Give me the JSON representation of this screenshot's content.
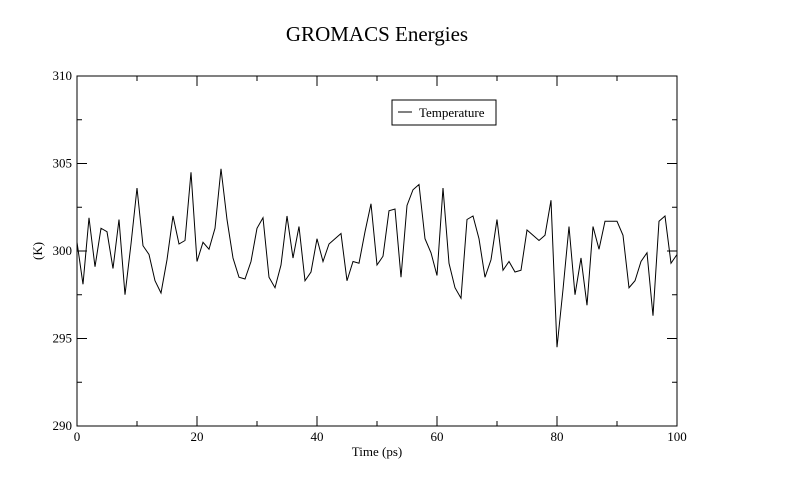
{
  "chart_data": {
    "type": "line",
    "title": "GROMACS Energies",
    "xlabel": "Time (ps)",
    "ylabel": "(K)",
    "xlim": [
      0,
      100
    ],
    "ylim": [
      290,
      310
    ],
    "xticks": [
      0,
      20,
      40,
      60,
      80,
      100
    ],
    "yticks": [
      290,
      295,
      300,
      305,
      310
    ],
    "grid": false,
    "legend_position": "top-right",
    "series": [
      {
        "name": "Temperature",
        "color": "#000000",
        "x": [
          0,
          1,
          2,
          3,
          4,
          5,
          6,
          7,
          8,
          9,
          10,
          11,
          12,
          13,
          14,
          15,
          16,
          17,
          18,
          19,
          20,
          21,
          22,
          23,
          24,
          25,
          26,
          27,
          28,
          29,
          30,
          31,
          32,
          33,
          34,
          35,
          36,
          37,
          38,
          39,
          40,
          41,
          42,
          43,
          44,
          45,
          46,
          47,
          48,
          49,
          50,
          51,
          52,
          53,
          54,
          55,
          56,
          57,
          58,
          59,
          60,
          61,
          62,
          63,
          64,
          65,
          66,
          67,
          68,
          69,
          70,
          71,
          72,
          73,
          74,
          75,
          76,
          77,
          78,
          79,
          80,
          81,
          82,
          83,
          84,
          85,
          86,
          87,
          88,
          89,
          90,
          91,
          92,
          93,
          94,
          95,
          96,
          97,
          98,
          99,
          100
        ],
        "values": [
          300.5,
          298.1,
          301.9,
          299.1,
          301.3,
          301.1,
          299.0,
          301.8,
          297.5,
          300.4,
          303.6,
          300.3,
          299.8,
          298.3,
          297.6,
          299.5,
          302.0,
          300.4,
          300.6,
          304.5,
          299.4,
          300.5,
          300.1,
          301.3,
          304.7,
          301.8,
          299.6,
          298.5,
          298.4,
          299.4,
          301.3,
          301.9,
          298.5,
          297.9,
          299.2,
          302.0,
          299.6,
          301.4,
          298.3,
          298.8,
          300.7,
          299.4,
          300.4,
          300.7,
          301.0,
          298.3,
          299.4,
          299.3,
          301.1,
          302.7,
          299.2,
          299.7,
          302.3,
          302.4,
          298.5,
          302.6,
          303.5,
          303.8,
          300.7,
          299.9,
          298.6,
          303.6,
          299.3,
          297.9,
          297.3,
          301.8,
          302.0,
          300.7,
          298.5,
          299.5,
          301.8,
          298.9,
          299.4,
          298.8,
          298.9,
          301.2,
          300.9,
          300.6,
          300.9,
          302.9,
          294.5,
          297.8,
          301.4,
          297.5,
          299.6,
          296.9,
          301.4,
          300.1,
          301.7,
          301.7,
          301.7,
          300.9,
          297.9,
          298.3,
          299.4,
          299.9,
          296.3,
          301.7,
          302.0,
          299.3,
          299.8
        ]
      }
    ]
  }
}
